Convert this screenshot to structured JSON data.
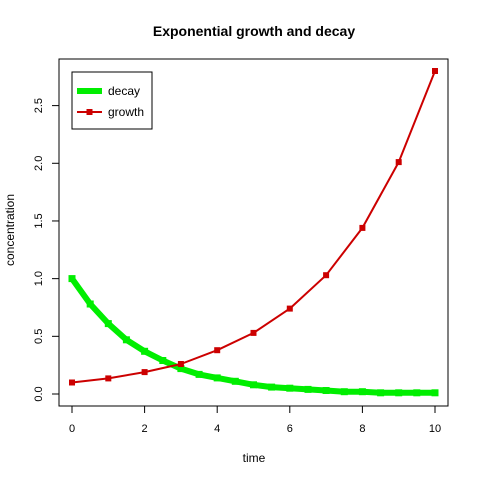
{
  "chart_data": {
    "type": "line",
    "title": "Exponential growth and decay",
    "xlabel": "time",
    "ylabel": "concentration",
    "xlim": [
      0,
      10
    ],
    "ylim": [
      0,
      2.8
    ],
    "x_ticks": [
      "0",
      "2",
      "4",
      "6",
      "8",
      "10"
    ],
    "x_tick_values": [
      0,
      2,
      4,
      6,
      8,
      10
    ],
    "y_ticks": [
      "0.0",
      "0.5",
      "1.0",
      "1.5",
      "2.0",
      "2.5"
    ],
    "y_tick_values": [
      0,
      0.5,
      1,
      1.5,
      2,
      2.5
    ],
    "grid": false,
    "legend_position": "top-left",
    "series": [
      {
        "name": "decay",
        "color": "#00ee00",
        "marker": "square",
        "line_style": "thick",
        "x": [
          0,
          0.5,
          1,
          1.5,
          2,
          2.5,
          3,
          3.5,
          4,
          4.5,
          5,
          5.5,
          6,
          6.5,
          7,
          7.5,
          8,
          8.5,
          9,
          9.5,
          10
        ],
        "values": [
          1.0,
          0.78,
          0.61,
          0.47,
          0.37,
          0.29,
          0.22,
          0.17,
          0.14,
          0.11,
          0.08,
          0.06,
          0.05,
          0.04,
          0.03,
          0.02,
          0.02,
          0.01,
          0.01,
          0.01,
          0.01
        ]
      },
      {
        "name": "growth",
        "color": "#cc0000",
        "marker": "square",
        "line_style": "thin",
        "x": [
          0,
          1,
          2,
          3,
          4,
          5,
          6,
          7,
          8,
          9,
          10
        ],
        "values": [
          0.1,
          0.135,
          0.19,
          0.26,
          0.38,
          0.53,
          0.74,
          1.03,
          1.44,
          2.01,
          2.8
        ]
      }
    ]
  }
}
